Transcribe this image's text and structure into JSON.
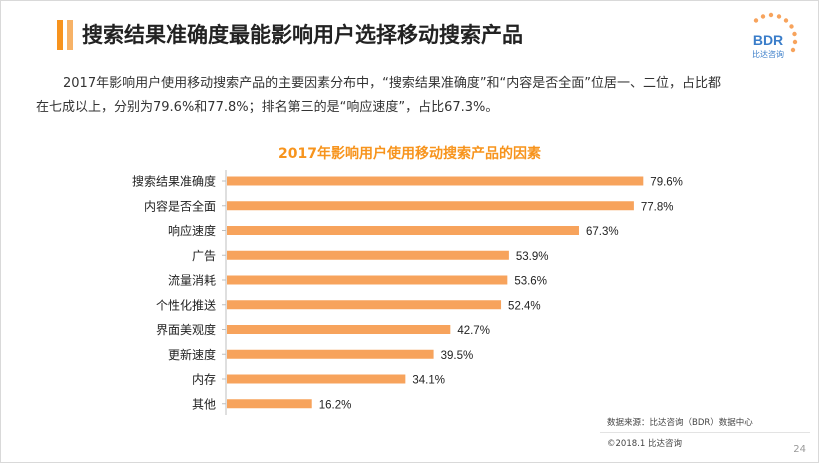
{
  "header": {
    "title": "搜索结果准确度最能影响用户选择移动搜索产品",
    "logo_text": "BDR",
    "logo_subtext": "比达咨询",
    "accent_color": "#f7931e",
    "accent_color_light": "#f7b267"
  },
  "summary": {
    "line1": "2017年影响用户使用移动搜索产品的主要因素分布中，“搜索结果准确度”和“内容是否全面”位居一、二位，占比都",
    "line2": "在七成以上，分别为79.6%和77.8%；排名第三的是“响应速度”，占比67.3%。"
  },
  "chart_data": {
    "type": "bar",
    "orientation": "horizontal",
    "title": "2017年影响用户使用移动搜索产品的因素",
    "categories": [
      "搜索结果准确度",
      "内容是否全面",
      "响应速度",
      "广告",
      "流量消耗",
      "个性化推送",
      "界面美观度",
      "更新速度",
      "内存",
      "其他"
    ],
    "values": [
      79.6,
      77.8,
      67.3,
      53.9,
      53.6,
      52.4,
      42.7,
      39.5,
      34.1,
      16.2
    ],
    "value_labels": [
      "79.6%",
      "77.8%",
      "67.3%",
      "53.9%",
      "53.6%",
      "52.4%",
      "42.7%",
      "39.5%",
      "34.1%",
      "16.2%"
    ],
    "unit": "%",
    "bar_color": "#f7a35c",
    "xlim": [
      0,
      100
    ],
    "grid": false,
    "legend": "none"
  },
  "footer": {
    "source": "数据来源：比达咨询（BDR）数据中心",
    "copyright": "©2018.1   比达咨询",
    "page_number": "24"
  }
}
